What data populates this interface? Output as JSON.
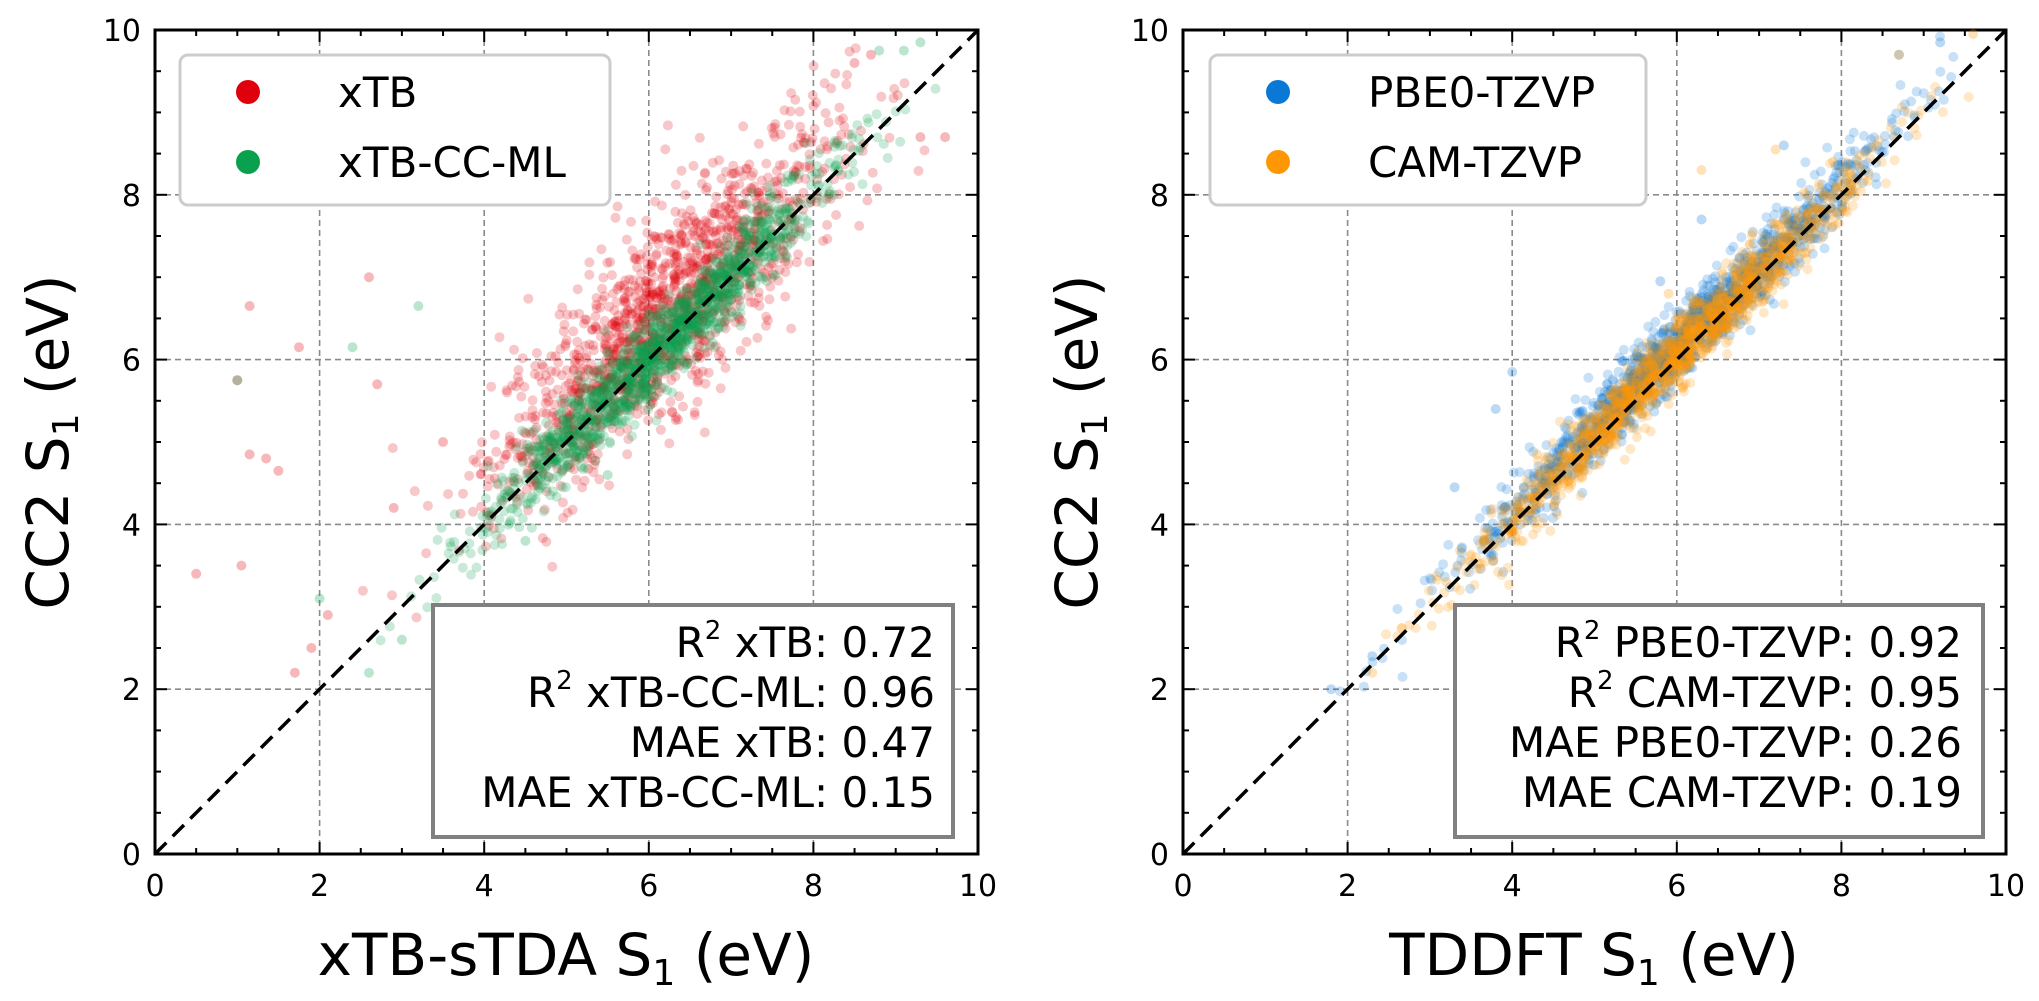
{
  "chart_data": [
    {
      "type": "scatter",
      "xlabel_main": "xTB-sTDA S",
      "xlabel_sub": "1",
      "xlabel_tail": " (eV)",
      "ylabel_main": "CC2 S",
      "ylabel_sub": "1",
      "ylabel_tail": " (eV)",
      "xlim": [
        0,
        10
      ],
      "ylim": [
        0,
        10
      ],
      "xticks": [
        "0",
        "2",
        "4",
        "6",
        "8",
        "10"
      ],
      "yticks": [
        "0",
        "2",
        "4",
        "6",
        "8",
        "10"
      ],
      "grid": true,
      "diagonal": true,
      "legend_position": "top-left",
      "series": [
        {
          "name": "xTB",
          "color": "#e0000b",
          "spread": 0.6,
          "offset": 0.45,
          "points": [
            [
              0.5,
              3.4
            ],
            [
              1.0,
              5.75
            ],
            [
              1.05,
              3.5
            ],
            [
              1.15,
              6.65
            ],
            [
              1.15,
              4.85
            ],
            [
              1.35,
              4.8
            ],
            [
              1.5,
              4.65
            ],
            [
              1.75,
              6.15
            ],
            [
              1.7,
              2.2
            ],
            [
              1.9,
              2.5
            ],
            [
              2.1,
              2.9
            ],
            [
              2.6,
              7.0
            ],
            [
              2.7,
              5.7
            ],
            [
              2.9,
              4.2
            ],
            [
              3.5,
              5.0
            ],
            [
              9.3,
              8.7
            ],
            [
              9.6,
              8.7
            ],
            [
              8.5,
              9.6
            ],
            [
              8.7,
              9.7
            ]
          ]
        },
        {
          "name": "xTB-CC-ML",
          "color": "#0aa14e",
          "spread": 0.25,
          "offset": 0.0,
          "points": [
            [
              1.0,
              5.75
            ],
            [
              2.0,
              3.1
            ],
            [
              2.4,
              6.15
            ],
            [
              2.6,
              2.2
            ],
            [
              3.2,
              6.65
            ],
            [
              3.0,
              2.6
            ],
            [
              4.5,
              3.8
            ],
            [
              5.5,
              4.6
            ],
            [
              8.8,
              9.75
            ],
            [
              9.1,
              9.75
            ],
            [
              9.3,
              9.85
            ]
          ]
        }
      ],
      "stats": {
        "r2_a_label": "xTB: ",
        "r2_a": "0.72",
        "r2_b_label": "xTB-CC-ML: ",
        "r2_b": "0.96",
        "mae_a": "MAE xTB: 0.47",
        "mae_b": "MAE xTB-CC-ML: 0.15"
      }
    },
    {
      "type": "scatter",
      "xlabel_main": "TDDFT S",
      "xlabel_sub": "1",
      "xlabel_tail": " (eV)",
      "ylabel_main": "CC2 S",
      "ylabel_sub": "1",
      "ylabel_tail": " (eV)",
      "xlim": [
        0,
        10
      ],
      "ylim": [
        0,
        10
      ],
      "xticks": [
        "0",
        "2",
        "4",
        "6",
        "8",
        "10"
      ],
      "yticks": [
        "0",
        "2",
        "4",
        "6",
        "8",
        "10"
      ],
      "grid": true,
      "diagonal": true,
      "legend_position": "top-left",
      "series": [
        {
          "name": "PBE0-TZVP",
          "color": "#0a78d7",
          "spread": 0.22,
          "offset": 0.18,
          "points": [
            [
              1.8,
              2.0
            ],
            [
              2.3,
              2.4
            ],
            [
              3.3,
              4.45
            ],
            [
              3.8,
              5.4
            ],
            [
              4.0,
              5.85
            ],
            [
              4.6,
              5.0
            ],
            [
              5.8,
              6.95
            ],
            [
              6.3,
              7.7
            ],
            [
              7.3,
              8.6
            ],
            [
              8.7,
              9.7
            ],
            [
              9.2,
              9.85
            ]
          ]
        },
        {
          "name": "CAM-TZVP",
          "color": "#ff9705",
          "spread": 0.2,
          "offset": 0.05,
          "points": [
            [
              2.3,
              2.2
            ],
            [
              3.2,
              3.3
            ],
            [
              4.0,
              3.9
            ],
            [
              4.3,
              4.85
            ],
            [
              5.9,
              6.8
            ],
            [
              6.3,
              8.3
            ],
            [
              7.2,
              8.55
            ],
            [
              7.9,
              8.4
            ],
            [
              8.7,
              9.7
            ],
            [
              9.6,
              9.95
            ]
          ]
        }
      ],
      "stats": {
        "r2_a_label": "PBE0-TZVP: ",
        "r2_a": "0.92",
        "r2_b_label": "CAM-TZVP: ",
        "r2_b": "0.95",
        "mae_a": "MAE PBE0-TZVP: 0.26",
        "mae_b": "MAE CAM-TZVP: 0.19"
      }
    }
  ]
}
